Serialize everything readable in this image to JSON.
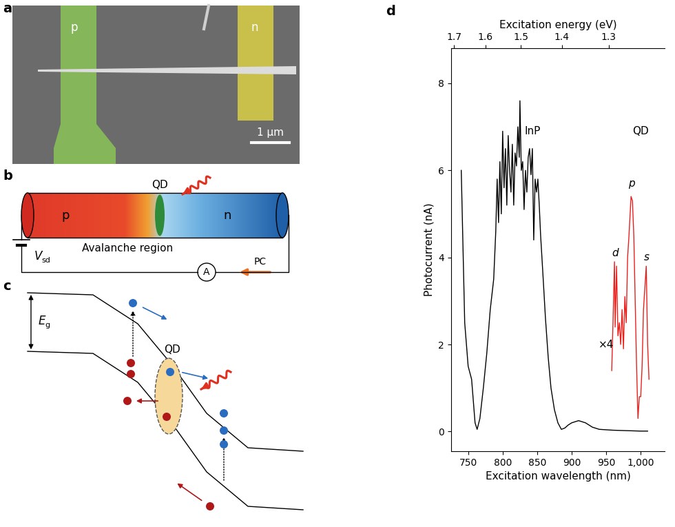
{
  "panels": {
    "a": {
      "label": "a",
      "electrodes": [
        "p",
        "n"
      ],
      "scale_bar": "1 μm"
    },
    "b": {
      "label": "b",
      "regions": [
        "p",
        "QD",
        "n"
      ],
      "region_label": "Avalanche region",
      "source": {
        "symbol": "V",
        "subscript": "sd"
      },
      "meter": "A",
      "current": "PC"
    },
    "c": {
      "label": "c",
      "gap": {
        "symbol": "E",
        "subscript": "g"
      },
      "dot": "QD"
    }
  },
  "chart_data": {
    "type": "line",
    "panel_label": "d",
    "x_label": "Excitation wavelength (nm)",
    "y_label": "Photocurrent (nA)",
    "x2_label": "Excitation energy (eV)",
    "xlim": [
      725,
      1035
    ],
    "ylim": [
      -0.45,
      8.8
    ],
    "xticks": [
      750,
      800,
      850,
      900,
      950,
      {
        "value": 1000,
        "label": "1,000"
      }
    ],
    "yticks": [
      0,
      2,
      4,
      6,
      8
    ],
    "x2ticks": [
      1.7,
      1.6,
      1.5,
      1.4,
      1.3
    ],
    "series": [
      {
        "color": "#000000",
        "x": [
          740,
          745,
          750,
          755,
          760,
          763,
          767,
          772,
          777,
          782,
          787,
          790,
          792,
          794,
          796,
          798,
          800,
          802,
          804,
          806,
          808,
          810,
          812,
          814,
          816,
          818,
          820,
          822,
          824,
          825,
          827,
          829,
          831,
          833,
          835,
          837,
          839,
          841,
          843,
          845,
          847,
          849,
          851,
          853,
          855,
          858,
          862,
          866,
          870,
          875,
          880,
          885,
          890,
          895,
          900,
          910,
          920,
          930,
          940,
          960,
          980,
          1000,
          1010
        ],
        "values": [
          6.0,
          2.5,
          1.5,
          1.2,
          0.2,
          0.05,
          0.3,
          1.0,
          1.8,
          2.8,
          3.5,
          4.6,
          5.8,
          4.8,
          6.2,
          5.0,
          6.9,
          5.6,
          6.5,
          5.2,
          6.8,
          6.0,
          5.5,
          6.6,
          5.2,
          6.4,
          6.1,
          7.0,
          6.3,
          7.6,
          6.0,
          6.2,
          5.1,
          6.0,
          5.5,
          6.3,
          6.5,
          5.9,
          6.5,
          4.4,
          5.8,
          5.5,
          5.8,
          5.2,
          4.5,
          3.7,
          2.6,
          1.7,
          1.0,
          0.5,
          0.2,
          0.05,
          0.08,
          0.15,
          0.2,
          0.25,
          0.2,
          0.1,
          0.05,
          0.03,
          0.02,
          0.01,
          0.01
        ]
      },
      {
        "color": "#e8201c",
        "x": [
          958,
          960,
          962,
          963,
          965,
          967,
          969,
          971,
          973,
          975,
          977,
          979,
          981,
          983,
          985,
          986,
          988,
          990,
          992,
          994,
          996,
          998,
          1000,
          1002,
          1004,
          1006,
          1008,
          1010,
          1012
        ],
        "values": [
          1.4,
          2.6,
          3.9,
          2.4,
          3.8,
          2.2,
          2.5,
          2.0,
          2.8,
          1.9,
          3.1,
          2.5,
          4.0,
          4.5,
          5.1,
          5.4,
          5.3,
          4.5,
          3.0,
          1.5,
          0.3,
          0.8,
          0.8,
          1.5,
          2.8,
          3.3,
          3.8,
          2.0,
          1.2
        ]
      }
    ],
    "annotations": [
      {
        "text": "InP",
        "x": 843,
        "y": 6.9
      },
      {
        "text": "QD",
        "x": 1000,
        "y": 6.9
      },
      {
        "text": "×4",
        "x": 950,
        "y": 2.0
      },
      {
        "text": "d",
        "x": 963,
        "y": 4.1
      },
      {
        "text": "p",
        "x": 987,
        "y": 5.7
      },
      {
        "text": "s",
        "x": 1009,
        "y": 4.0
      }
    ]
  }
}
